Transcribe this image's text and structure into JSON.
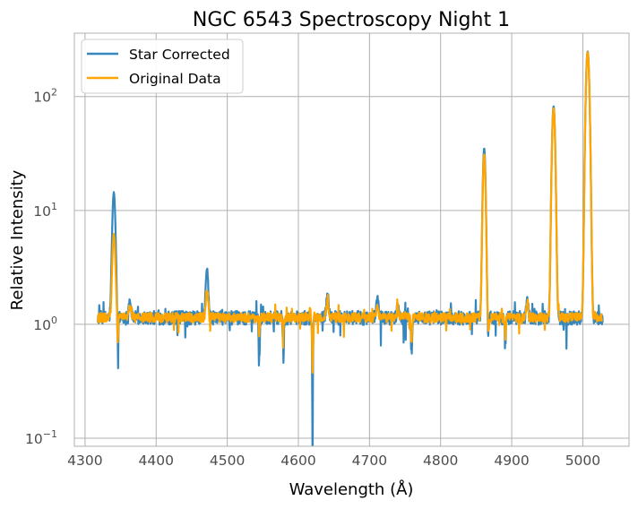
{
  "chart_data": {
    "type": "line",
    "title": "NGC 6543 Spectroscopy Night 1",
    "xlabel": "Wavelength (Å)",
    "ylabel": "Relative Intensity",
    "xlim": [
      4285,
      5065
    ],
    "ylim": [
      0.085,
      360
    ],
    "yscale": "log",
    "grid": true,
    "legend_position": "top-left",
    "xticks": [
      4300,
      4400,
      4500,
      4600,
      4700,
      4800,
      4900,
      5000
    ],
    "xtick_labels": [
      "4300",
      "4400",
      "4500",
      "4600",
      "4700",
      "4800",
      "4900",
      "5000"
    ],
    "yticks": [
      0.1,
      1,
      10,
      100
    ],
    "ytick_labels": [
      "10",
      "10",
      "10",
      "10"
    ],
    "ytick_exponents": [
      "−1",
      "0",
      "1",
      "2"
    ],
    "baseline": 1.15,
    "features": [
      {
        "center": 4340.5,
        "width": 1.8,
        "amp_a": 13.2,
        "amp_b": 5.0
      },
      {
        "center": 4346.0,
        "width": 0.6,
        "amp_a": -0.9,
        "amp_b": -0.5
      },
      {
        "center": 4363.0,
        "width": 1.5,
        "amp_a": 0.5,
        "amp_b": 0.3
      },
      {
        "center": 4471.5,
        "width": 1.5,
        "amp_a": 2.0,
        "amp_b": 0.9
      },
      {
        "center": 4545.0,
        "width": 0.8,
        "amp_a": -0.7,
        "amp_b": -0.3
      },
      {
        "center": 4579.0,
        "width": 0.8,
        "amp_a": -0.6,
        "amp_b": -0.3
      },
      {
        "center": 4620.0,
        "width": 0.8,
        "amp_a": -1.1,
        "amp_b": -0.86
      },
      {
        "center": 4641.0,
        "width": 1.5,
        "amp_a": 0.7,
        "amp_b": 0.45
      },
      {
        "center": 4711.0,
        "width": 1.5,
        "amp_a": 0.5,
        "amp_b": 0.35
      },
      {
        "center": 4740.0,
        "width": 1.5,
        "amp_a": 0.3,
        "amp_b": 0.2
      },
      {
        "center": 4759.0,
        "width": 0.9,
        "amp_a": -0.55,
        "amp_b": -0.4
      },
      {
        "center": 4861.3,
        "width": 1.6,
        "amp_a": 34.0,
        "amp_b": 30.0
      },
      {
        "center": 4867.0,
        "width": 0.8,
        "amp_a": -0.45,
        "amp_b": -0.35
      },
      {
        "center": 4891.0,
        "width": 0.8,
        "amp_a": -0.45,
        "amp_b": -0.35
      },
      {
        "center": 4922.0,
        "width": 1.2,
        "amp_a": 0.6,
        "amp_b": 0.5
      },
      {
        "center": 4958.9,
        "width": 1.8,
        "amp_a": 81.0,
        "amp_b": 78.0
      },
      {
        "center": 5006.8,
        "width": 2.0,
        "amp_a": 248.0,
        "amp_b": 245.0
      }
    ],
    "series": [
      {
        "name": "Star Corrected",
        "color": "#3587bd",
        "x_start": 4318,
        "x_end": 5028
      },
      {
        "name": "Original Data",
        "color": "#ffa500",
        "x_start": 4318,
        "x_end": 5028
      }
    ]
  }
}
